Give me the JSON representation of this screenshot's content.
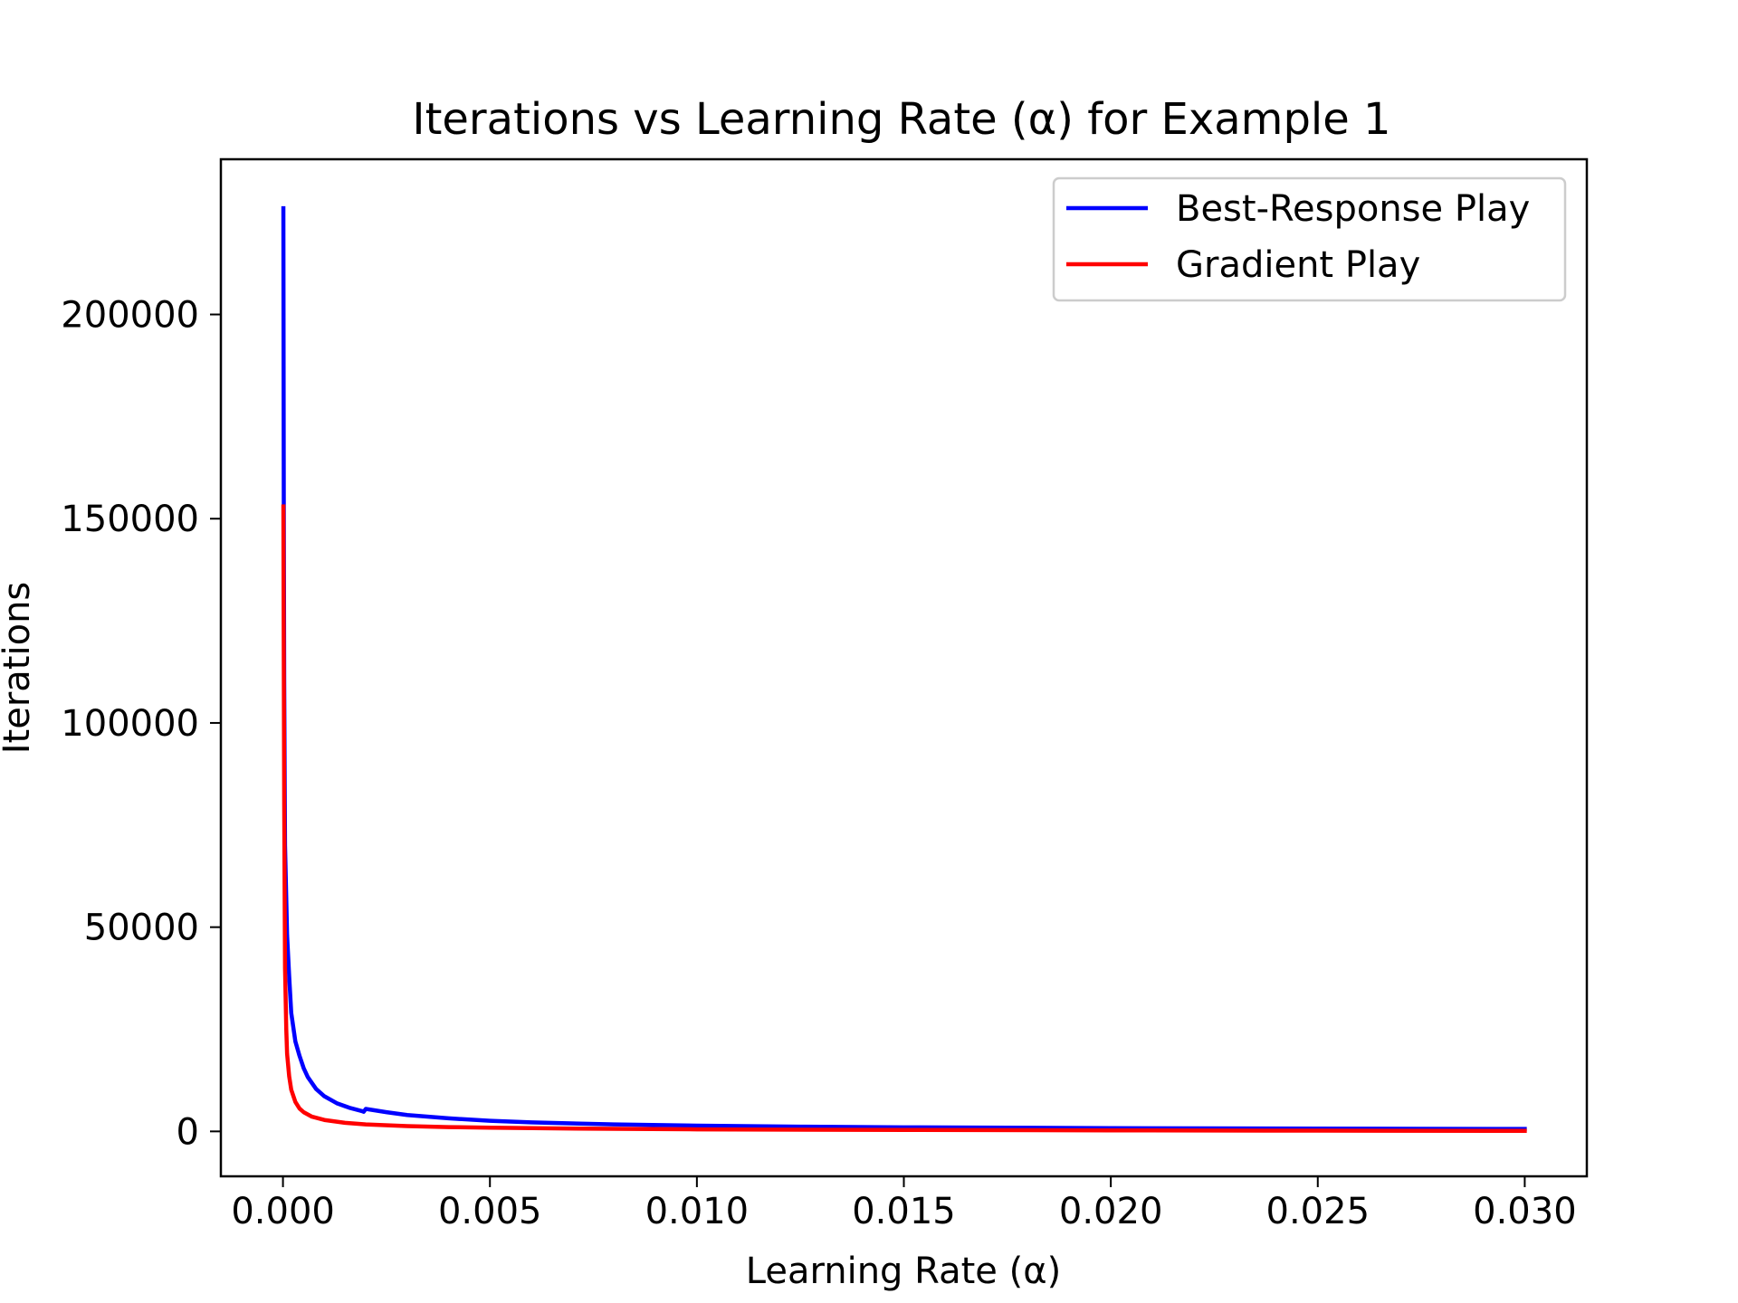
{
  "chart_data": {
    "type": "line",
    "title": "Iterations vs Learning Rate (α) for Example 1",
    "xlabel": "Learning Rate (α)",
    "ylabel": "Iterations",
    "xlim": [
      -0.0015,
      0.0315
    ],
    "ylim": [
      -11000,
      238000
    ],
    "xticks": [
      0.0,
      0.005,
      0.01,
      0.015,
      0.02,
      0.025,
      0.03
    ],
    "xtick_labels": [
      "0.000",
      "0.005",
      "0.010",
      "0.015",
      "0.020",
      "0.025",
      "0.030"
    ],
    "yticks": [
      0,
      50000,
      100000,
      150000,
      200000
    ],
    "ytick_labels": [
      "0",
      "50000",
      "100000",
      "150000",
      "200000"
    ],
    "grid": false,
    "legend_position": "top-right",
    "series": [
      {
        "name": "Best-Response Play",
        "color": "#0000ff",
        "x": [
          1e-05,
          2e-05,
          3e-05,
          5e-05,
          0.0001,
          0.00015,
          0.0002,
          0.0003,
          0.0004,
          0.0005,
          0.0006,
          0.0008,
          0.001,
          0.0013,
          0.0016,
          0.0019,
          0.00195,
          0.002,
          0.0025,
          0.003,
          0.004,
          0.005,
          0.006,
          0.008,
          0.01,
          0.0125,
          0.015,
          0.0175,
          0.02,
          0.0225,
          0.025,
          0.0275,
          0.03
        ],
        "y": [
          226000,
          153000,
          110000,
          70000,
          48000,
          38000,
          29000,
          22000,
          18500,
          15500,
          13300,
          10400,
          8600,
          6900,
          5800,
          5000,
          4800,
          5500,
          4700,
          4000,
          3200,
          2600,
          2200,
          1700,
          1400,
          1150,
          1000,
          900,
          800,
          730,
          680,
          640,
          600
        ]
      },
      {
        "name": "Gradient Play",
        "color": "#ff0000",
        "x": [
          1e-05,
          2e-05,
          3e-05,
          5e-05,
          8e-05,
          0.0001,
          0.00015,
          0.0002,
          0.0003,
          0.0004,
          0.0005,
          0.0007,
          0.001,
          0.0015,
          0.002,
          0.003,
          0.004,
          0.005,
          0.0075,
          0.01,
          0.015,
          0.02,
          0.025,
          0.03
        ],
        "y": [
          153000,
          115000,
          80000,
          40000,
          25000,
          19000,
          13500,
          10200,
          7200,
          5600,
          4700,
          3600,
          2800,
          2100,
          1700,
          1300,
          1050,
          900,
          650,
          500,
          350,
          250,
          180,
          120
        ]
      }
    ]
  }
}
